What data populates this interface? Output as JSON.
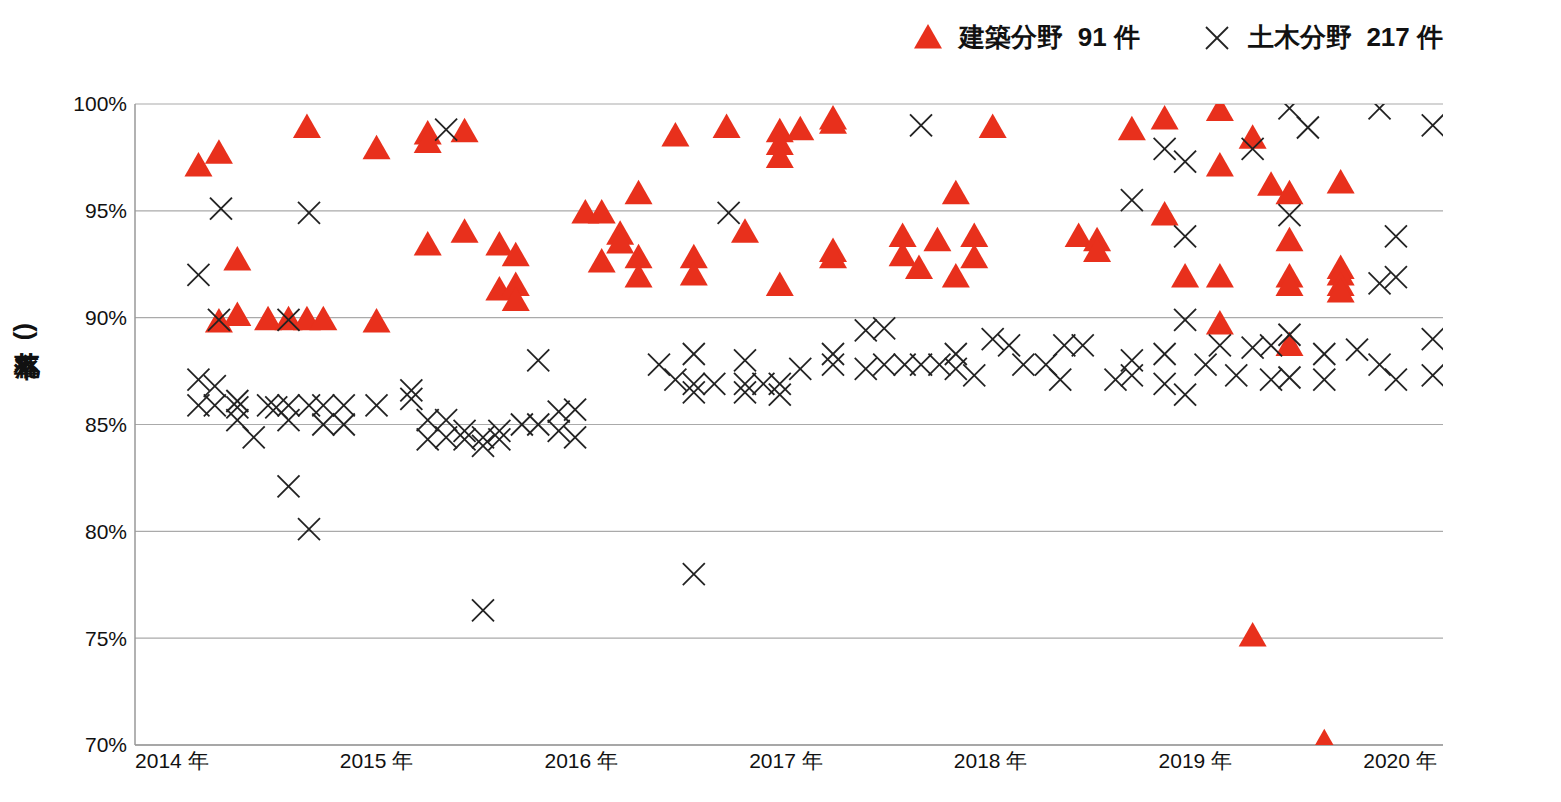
{
  "chart_data": {
    "type": "scatter",
    "y_label": "(落札率)",
    "xlim": [
      2013.82,
      2020.21
    ],
    "xticks": [
      {
        "value": 2014,
        "label": "2014 年"
      },
      {
        "value": 2015,
        "label": "2015 年"
      },
      {
        "value": 2016,
        "label": "2016 年"
      },
      {
        "value": 2017,
        "label": "2017 年"
      },
      {
        "value": 2018,
        "label": "2018 年"
      },
      {
        "value": 2019,
        "label": "2019 年"
      },
      {
        "value": 2020,
        "label": "2020 年"
      }
    ],
    "ylim": [
      70,
      100
    ],
    "yticks": [
      {
        "value": 70,
        "label": "70%"
      },
      {
        "value": 75,
        "label": "75%"
      },
      {
        "value": 80,
        "label": "80%"
      },
      {
        "value": 85,
        "label": "85%"
      },
      {
        "value": 90,
        "label": "90%"
      },
      {
        "value": 95,
        "label": "95%"
      },
      {
        "value": 100,
        "label": "100%"
      }
    ],
    "grid": true,
    "legend": "top right",
    "series": [
      {
        "name": "建築分野  91 件",
        "color": "#e8301c",
        "marker": "triangle",
        "x": [
          2014.13,
          2014.23,
          2014.32,
          2014.23,
          2014.32,
          2014.47,
          2014.57,
          2014.66,
          2014.66,
          2014.74,
          2015.0,
          2015.0,
          2015.25,
          2015.25,
          2015.25,
          2015.43,
          2015.43,
          2015.6,
          2015.6,
          2015.68,
          2015.68,
          2015.68,
          2016.02,
          2016.1,
          2016.1,
          2016.19,
          2016.19,
          2016.28,
          2016.28,
          2016.28,
          2016.46,
          2016.55,
          2016.55,
          2016.71,
          2016.8,
          2016.97,
          2016.97,
          2016.97,
          2016.97,
          2017.07,
          2017.23,
          2017.23,
          2017.23,
          2017.23,
          2017.57,
          2017.57,
          2017.65,
          2017.74,
          2017.83,
          2017.83,
          2017.92,
          2017.92,
          2018.01,
          2018.43,
          2018.52,
          2018.52,
          2018.69,
          2018.85,
          2018.85,
          2018.95,
          2019.12,
          2019.12,
          2019.12,
          2019.12,
          2019.28,
          2019.28,
          2019.37,
          2019.46,
          2019.46,
          2019.46,
          2019.46,
          2019.46,
          2019.63,
          2019.71,
          2019.71,
          2019.71,
          2019.71,
          2019.71
        ],
        "values": [
          97.1,
          97.7,
          92.7,
          89.8,
          90.1,
          89.9,
          89.9,
          98.9,
          89.9,
          89.9,
          97.9,
          89.8,
          98.6,
          98.2,
          93.4,
          98.7,
          94.0,
          93.4,
          91.3,
          92.9,
          91.5,
          90.8,
          94.9,
          94.9,
          92.6,
          93.9,
          93.5,
          95.8,
          92.8,
          91.9,
          98.5,
          92.8,
          92.0,
          98.9,
          94.0,
          98.7,
          98.1,
          97.5,
          91.5,
          98.8,
          99.3,
          99.1,
          93.1,
          92.8,
          93.8,
          92.9,
          92.3,
          93.6,
          95.8,
          91.9,
          93.8,
          92.8,
          98.9,
          93.8,
          93.6,
          93.1,
          98.8,
          99.3,
          94.8,
          91.9,
          99.7,
          97.1,
          91.9,
          89.7,
          98.4,
          75.1,
          96.2,
          95.8,
          93.6,
          91.9,
          91.5,
          88.7,
          70.1,
          96.3,
          92.3,
          92.0,
          91.5,
          91.2
        ]
      },
      {
        "name": "土木分野  217 件",
        "color": "#222222",
        "marker": "x",
        "x": [
          2014.13,
          2014.24,
          2014.23,
          2014.13,
          2014.13,
          2014.21,
          2014.21,
          2014.32,
          2014.32,
          2014.32,
          2014.4,
          2014.47,
          2014.51,
          2014.57,
          2014.57,
          2014.57,
          2014.57,
          2014.67,
          2014.67,
          2014.67,
          2014.74,
          2014.74,
          2014.84,
          2014.84,
          2015.0,
          2015.17,
          2015.17,
          2015.25,
          2015.25,
          2015.34,
          2015.34,
          2015.34,
          2015.43,
          2015.43,
          2015.52,
          2015.52,
          2015.52,
          2015.6,
          2015.6,
          2015.71,
          2015.79,
          2015.79,
          2015.89,
          2015.89,
          2015.97,
          2015.97,
          2016.38,
          2016.46,
          2016.55,
          2016.55,
          2016.55,
          2016.55,
          2016.65,
          2016.72,
          2016.8,
          2016.8,
          2016.8,
          2016.89,
          2016.97,
          2016.97,
          2017.07,
          2017.23,
          2017.23,
          2017.39,
          2017.48,
          2017.39,
          2017.48,
          2017.58,
          2017.66,
          2017.66,
          2017.75,
          2017.83,
          2017.83,
          2017.92,
          2018.01,
          2018.09,
          2018.16,
          2018.27,
          2018.34,
          2018.36,
          2018.45,
          2018.61,
          2018.69,
          2018.69,
          2018.69,
          2018.85,
          2018.85,
          2018.85,
          2018.95,
          2018.95,
          2018.95,
          2018.95,
          2019.05,
          2019.12,
          2019.2,
          2019.28,
          2019.28,
          2019.37,
          2019.37,
          2019.46,
          2019.46,
          2019.46,
          2019.46,
          2019.55,
          2019.63,
          2019.63,
          2019.79,
          2019.9,
          2019.9,
          2019.9,
          2019.98,
          2019.98,
          2019.98,
          2020.16,
          2020.16,
          2020.16
        ],
        "values": [
          92.0,
          95.1,
          89.9,
          87.1,
          85.9,
          86.8,
          85.9,
          86.1,
          85.8,
          85.2,
          84.4,
          85.9,
          85.8,
          89.9,
          85.9,
          85.2,
          82.1,
          94.9,
          85.9,
          80.1,
          85.9,
          85.0,
          85.9,
          85.0,
          85.9,
          86.6,
          86.2,
          85.2,
          84.3,
          98.8,
          85.2,
          84.4,
          84.7,
          84.3,
          76.3,
          84.4,
          84.0,
          84.7,
          84.3,
          85.0,
          88.0,
          85.0,
          85.6,
          84.7,
          85.7,
          84.4,
          87.8,
          87.1,
          88.3,
          78.0,
          86.9,
          86.5,
          86.9,
          94.9,
          88.0,
          86.9,
          86.5,
          86.9,
          86.9,
          86.4,
          87.6,
          88.3,
          87.8,
          89.4,
          89.5,
          87.6,
          87.8,
          87.8,
          99.0,
          87.8,
          87.8,
          88.3,
          87.6,
          87.3,
          89.0,
          88.7,
          87.8,
          87.8,
          87.1,
          88.7,
          88.7,
          87.1,
          95.5,
          88.0,
          87.3,
          97.9,
          88.3,
          86.9,
          97.3,
          93.8,
          89.9,
          86.4,
          87.8,
          88.7,
          87.3,
          88.6,
          97.9,
          88.7,
          87.1,
          99.8,
          94.8,
          89.2,
          87.2,
          98.9,
          88.3,
          87.1,
          88.5,
          99.8,
          91.6,
          87.8,
          93.8,
          91.9,
          87.1,
          99.0,
          89.0,
          87.3
        ]
      }
    ]
  }
}
